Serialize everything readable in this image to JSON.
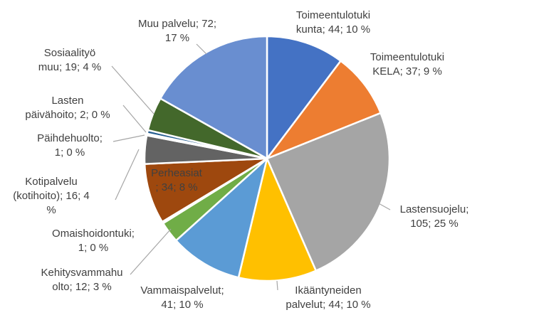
{
  "chart_data": {
    "type": "pie",
    "title": "",
    "start_angle_deg": 0,
    "direction": "clockwise",
    "slices": [
      {
        "label": [
          "Toimeentulotuki",
          "kunta; 44; 10 %"
        ],
        "name": "Toimeentulotuki kunta",
        "value": 44,
        "percent": "10 %",
        "color": "#4472c4"
      },
      {
        "label": [
          "Toimeentulotuki",
          "KELA; 37; 9 %"
        ],
        "name": "Toimeentulotuki KELA",
        "value": 37,
        "percent": "9 %",
        "color": "#ed7d31"
      },
      {
        "label": [
          "Lastensuojelu;",
          "105; 25 %"
        ],
        "name": "Lastensuojelu",
        "value": 105,
        "percent": "25 %",
        "color": "#a5a5a5"
      },
      {
        "label": [
          "Ikääntyneiden",
          "palvelut; 44; 10 %"
        ],
        "name": "Ikääntyneiden palvelut",
        "value": 44,
        "percent": "10 %",
        "color": "#ffc000"
      },
      {
        "label": [
          "Vammaispalvelut;",
          "41; 10 %"
        ],
        "name": "Vammaispalvelut",
        "value": 41,
        "percent": "10 %",
        "color": "#5b9bd5"
      },
      {
        "label": [
          "Kehitysvammahu",
          "olto; 12; 3 %"
        ],
        "name": "Kehitysvammahuolto",
        "value": 12,
        "percent": "3 %",
        "color": "#70ad47"
      },
      {
        "label": [
          "Omaishoidontuki;",
          "1; 0 %"
        ],
        "name": "Omaishoidontuki",
        "value": 1,
        "percent": "0 %",
        "color": "#264478"
      },
      {
        "label": [
          "Perheasiat",
          "; 34; 8 %"
        ],
        "name": "Perheasiat",
        "value": 34,
        "percent": "8 %",
        "color": "#9e480e"
      },
      {
        "label": [
          "Kotipalvelu",
          "(kotihoito); 16; 4",
          "%"
        ],
        "name": "Kotipalvelu (kotihoito)",
        "value": 16,
        "percent": "4 %",
        "color": "#636363"
      },
      {
        "label": [
          "Päihdehuolto;",
          "1; 0 %"
        ],
        "name": "Päihdehuolto",
        "value": 1,
        "percent": "0 %",
        "color": "#997300"
      },
      {
        "label": [
          "Lasten",
          "päivähoito; 2; 0 %"
        ],
        "name": "Lasten päivähoito",
        "value": 2,
        "percent": "0 %",
        "color": "#255e91"
      },
      {
        "label": [
          "Sosiaalityö",
          "muu; 19; 4 %"
        ],
        "name": "Sosiaalityö muu",
        "value": 19,
        "percent": "4 %",
        "color": "#43682b"
      },
      {
        "label": [
          "Muu palvelu; 72;",
          "17 %"
        ],
        "name": "Muu palvelu",
        "value": 72,
        "percent": "17 %",
        "color": "#698ed0"
      }
    ]
  }
}
